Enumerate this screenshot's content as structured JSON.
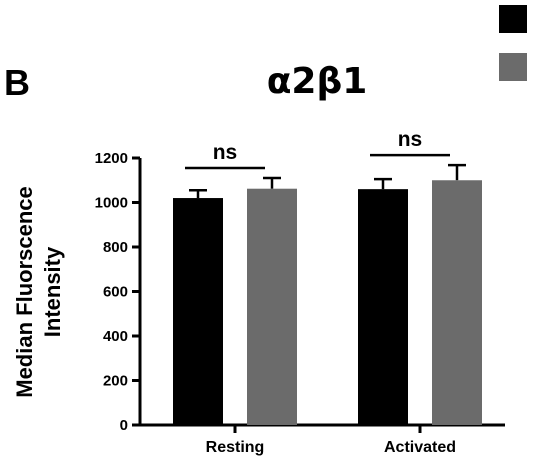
{
  "panel_label": "B",
  "chart_data": {
    "type": "bar",
    "title": "α2β1",
    "xlabel": "",
    "ylabel_lines": [
      "Median Fluorscence",
      "Intensity"
    ],
    "categories": [
      "Resting",
      "Activated"
    ],
    "ylim": [
      0,
      1200
    ],
    "yticks": [
      0,
      200,
      400,
      600,
      800,
      1000,
      1200
    ],
    "grid": false,
    "legend": "top-right",
    "series": [
      {
        "color": "#000000",
        "values": [
          1020,
          1060
        ],
        "errors": [
          35,
          45
        ]
      },
      {
        "color": "#6b6b6b",
        "values": [
          1062,
          1100
        ],
        "errors": [
          48,
          68
        ]
      }
    ],
    "annotations": [
      {
        "text": "ns",
        "category": "Resting"
      },
      {
        "text": "ns",
        "category": "Activated"
      }
    ]
  }
}
